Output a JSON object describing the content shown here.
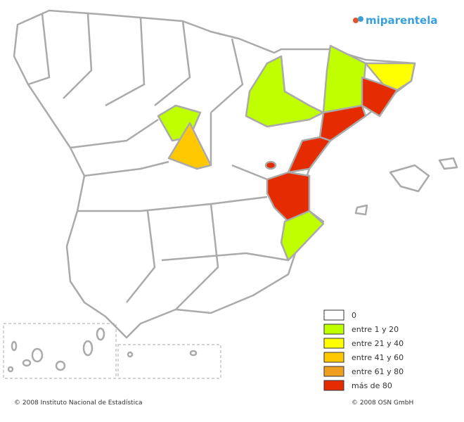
{
  "logo": "miparentela",
  "legend": [
    {
      "label": "0",
      "color": "#ffffff"
    },
    {
      "label": "entre 1 y 20",
      "color": "#bfff00"
    },
    {
      "label": "entre 21 y 40",
      "color": "#ffff00"
    },
    {
      "label": "entre 41 y 60",
      "color": "#ffc800"
    },
    {
      "label": "entre 61 y 80",
      "color": "#f0a020"
    },
    {
      "label": "más de 80",
      "color": "#e52b00"
    }
  ],
  "footer": {
    "left": "© 2008 Instituto Nacional de Estadística",
    "right": "© 2008 OSN GmbH"
  }
}
